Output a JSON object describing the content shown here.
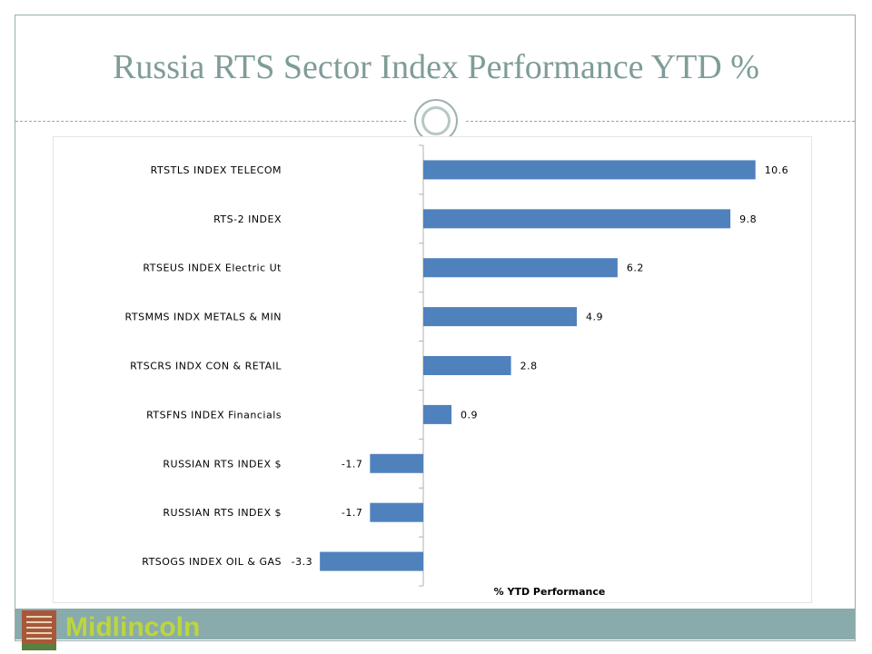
{
  "slide": {
    "title": "Russia RTS Sector Index Performance YTD %",
    "brand": "Midlincoln",
    "brand_color": "#bcd63c",
    "accent_color": "#8aabab"
  },
  "chart_data": {
    "type": "bar",
    "orientation": "horizontal",
    "title": "",
    "xlabel": "% YTD Performance",
    "ylabel": "",
    "categories": [
      "RTSTLS INDEX TELECOM",
      "RTS-2 INDEX",
      "RTSEUS INDEX Electric Ut",
      "RTSMMS INDX METALS & MIN",
      "RTSCRS INDX CON & RETAIL",
      "RTSFNS INDEX Financials",
      "RUSSIAN RTS INDEX $",
      "RUSSIAN RTS INDEX $",
      "RTSOGS INDEX OIL & GAS"
    ],
    "values": [
      10.6,
      9.8,
      6.2,
      4.9,
      2.8,
      0.9,
      -1.7,
      -1.7,
      -3.3
    ],
    "value_labels": [
      "10.6",
      "9.8",
      "6.2",
      "4.9",
      "2.8",
      "0.9",
      "-1.7",
      "-1.7",
      "-3.3"
    ],
    "xlim": [
      -3.3,
      10.6
    ],
    "bar_color": "#4f81bd",
    "grid": false,
    "legend": "none"
  }
}
